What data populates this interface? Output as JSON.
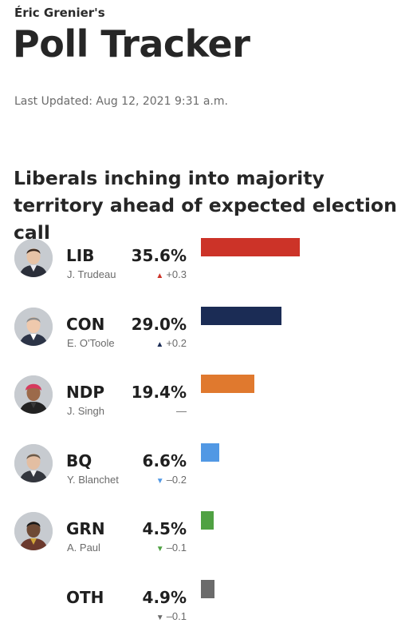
{
  "header": {
    "byline": "Éric Grenier's",
    "title": "Poll Tracker",
    "last_updated": "Last Updated: Aug 12, 2021 9:31 a.m."
  },
  "headline": "Liberals inching into majority territory ahead of expected election call",
  "parties": [
    {
      "abbr": "LIB",
      "leader": "J. Trudeau",
      "pct_label": "35.6%",
      "change": "+0.3",
      "direction": "up",
      "color": "#cc3328",
      "arrow_color": "#cc3328",
      "icon": "trudeau-avatar"
    },
    {
      "abbr": "CON",
      "leader": "E. O'Toole",
      "pct_label": "29.0%",
      "change": "+0.2",
      "direction": "up",
      "color": "#1b2c55",
      "arrow_color": "#1b2c55",
      "icon": "otoole-avatar"
    },
    {
      "abbr": "NDP",
      "leader": "J. Singh",
      "pct_label": "19.4%",
      "change": "—",
      "direction": "none",
      "color": "#e0792e",
      "arrow_color": "#6b6b6b",
      "icon": "singh-avatar"
    },
    {
      "abbr": "BQ",
      "leader": "Y. Blanchet",
      "pct_label": "6.6%",
      "change": "–0.2",
      "direction": "down",
      "color": "#5198e4",
      "arrow_color": "#5198e4",
      "icon": "blanchet-avatar"
    },
    {
      "abbr": "GRN",
      "leader": "A. Paul",
      "pct_label": "4.5%",
      "change": "–0.1",
      "direction": "down",
      "color": "#4fa142",
      "arrow_color": "#4fa142",
      "icon": "paul-avatar"
    },
    {
      "abbr": "OTH",
      "leader": "",
      "pct_label": "4.9%",
      "change": "–0.1",
      "direction": "down",
      "color": "#6b6b6b",
      "arrow_color": "#6b6b6b",
      "icon": ""
    }
  ],
  "chart_data": {
    "type": "bar",
    "orientation": "horizontal",
    "categories": [
      "LIB",
      "CON",
      "NDP",
      "BQ",
      "GRN",
      "OTH"
    ],
    "values": [
      35.6,
      29.0,
      19.4,
      6.6,
      4.5,
      4.9
    ],
    "changes": [
      0.3,
      0.2,
      0.0,
      -0.2,
      -0.1,
      -0.1
    ],
    "title": "Liberals inching into majority territory ahead of expected election call",
    "xlabel": "",
    "ylabel": "",
    "grid": false
  }
}
